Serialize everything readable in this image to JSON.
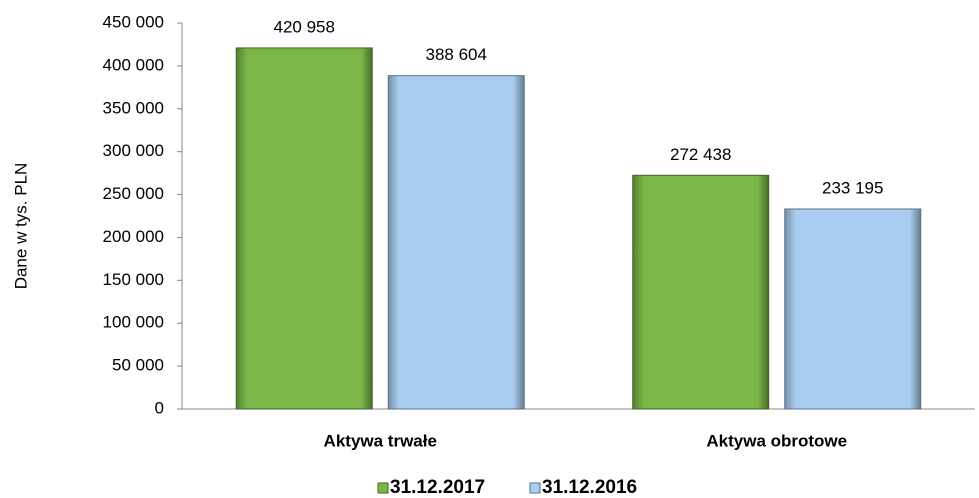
{
  "chart_data": {
    "type": "bar",
    "y_axis_label": "Dane w tys. PLN",
    "categories": [
      "Aktywa trwałe",
      "Aktywa obrotowe"
    ],
    "series": [
      {
        "name": "31.12.2017",
        "color": "#7ab648",
        "values": [
          420958,
          272438
        ],
        "value_labels": [
          "420 958",
          "272 438"
        ]
      },
      {
        "name": "31.12.2016",
        "color": "#a9cdf0",
        "values": [
          388604,
          233195
        ],
        "value_labels": [
          "388 604",
          "233 195"
        ]
      }
    ],
    "ylim": [
      0,
      450000
    ],
    "yticks": [
      0,
      {
        "value": 50000,
        "label": "50 000"
      },
      {
        "value": 100000,
        "label": "100 000"
      },
      {
        "value": 150000,
        "label": "150 000"
      },
      {
        "value": 200000,
        "label": "200 000"
      },
      {
        "value": 250000,
        "label": "250 000"
      },
      {
        "value": 300000,
        "label": "300 000"
      },
      {
        "value": 350000,
        "label": "350 000"
      },
      {
        "value": 400000,
        "label": "400 000"
      },
      {
        "value": 450000,
        "label": "450 000"
      }
    ],
    "grid": false,
    "legend": "bottom"
  }
}
